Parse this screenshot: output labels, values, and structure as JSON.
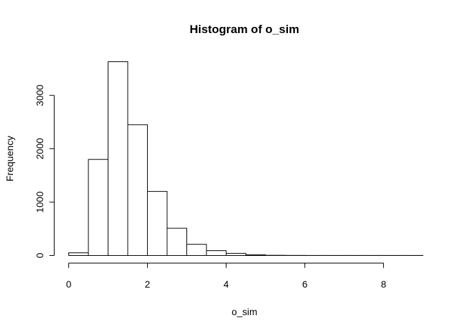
{
  "chart_data": {
    "type": "bar",
    "title": "Histogram of o_sim",
    "xlabel": "o_sim",
    "ylabel": "Frequency",
    "bin_edges": [
      0,
      0.5,
      1,
      1.5,
      2,
      2.5,
      3,
      3.5,
      4,
      4.5,
      5,
      5.5,
      6,
      6.5,
      7,
      7.5,
      8,
      8.5,
      9
    ],
    "values": [
      50,
      1800,
      3630,
      2450,
      1200,
      510,
      210,
      90,
      40,
      12,
      4,
      2,
      1,
      1,
      1,
      1,
      1,
      1
    ],
    "x_ticks": [
      0,
      2,
      4,
      6,
      8
    ],
    "y_ticks": [
      0,
      1000,
      2000,
      3000
    ],
    "xlim": [
      0,
      9
    ],
    "ylim": [
      0,
      3630
    ],
    "grid": false,
    "colors": {
      "bar_fill": "#ffffff",
      "bar_stroke": "#000000"
    }
  }
}
